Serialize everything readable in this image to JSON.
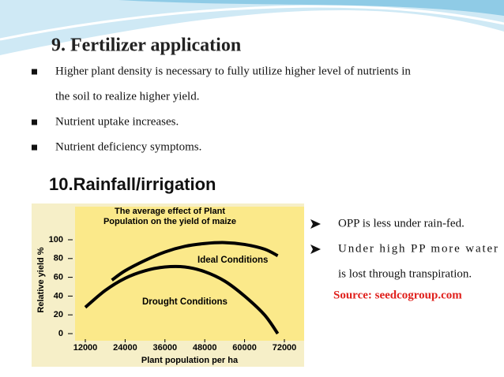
{
  "slide": {
    "heading1": "9. Fertilizer application",
    "bullets1": [
      [
        "Higher plant density is necessary to fully utilize higher level of nutrients in",
        "the soil to realize higher yield."
      ],
      [
        "Nutrient uptake increases."
      ],
      [
        "Nutrient deficiency symptoms."
      ]
    ],
    "heading2": "10.Rainfall/irrigation",
    "bullets2": [
      [
        "OPP is less under rain-fed."
      ],
      [
        "Under high PP more water",
        "is lost through transpiration."
      ]
    ],
    "source": "Source: seedcogroup.com"
  },
  "chart_data": {
    "type": "line",
    "title": [
      "The average effect of Plant",
      "Population on the yield of maize"
    ],
    "x_label": "Plant population per ha",
    "y_label": "Relative yield %",
    "series": [
      {
        "name": "Ideal Conditions",
        "color": "#000000",
        "x": [
          20000,
          24000,
          30000,
          36000,
          42000,
          48000,
          54000,
          60000,
          66000,
          70000
        ],
        "values": [
          57,
          67,
          78,
          87,
          93,
          96,
          97,
          95,
          90,
          83
        ]
      },
      {
        "name": "Drought Conditions",
        "color": "#000000",
        "x": [
          12000,
          18000,
          24000,
          30000,
          36000,
          42000,
          48000,
          54000,
          60000,
          66000,
          70000
        ],
        "values": [
          28,
          46,
          59,
          67,
          71,
          71,
          66,
          56,
          40,
          20,
          0
        ]
      }
    ],
    "xlim": [
      12000,
      72000
    ],
    "xticks": [
      12000,
      24000,
      36000,
      48000,
      60000,
      72000
    ],
    "ylim": [
      0,
      100
    ],
    "yticks": [
      0,
      20,
      40,
      60,
      80,
      100
    ]
  }
}
